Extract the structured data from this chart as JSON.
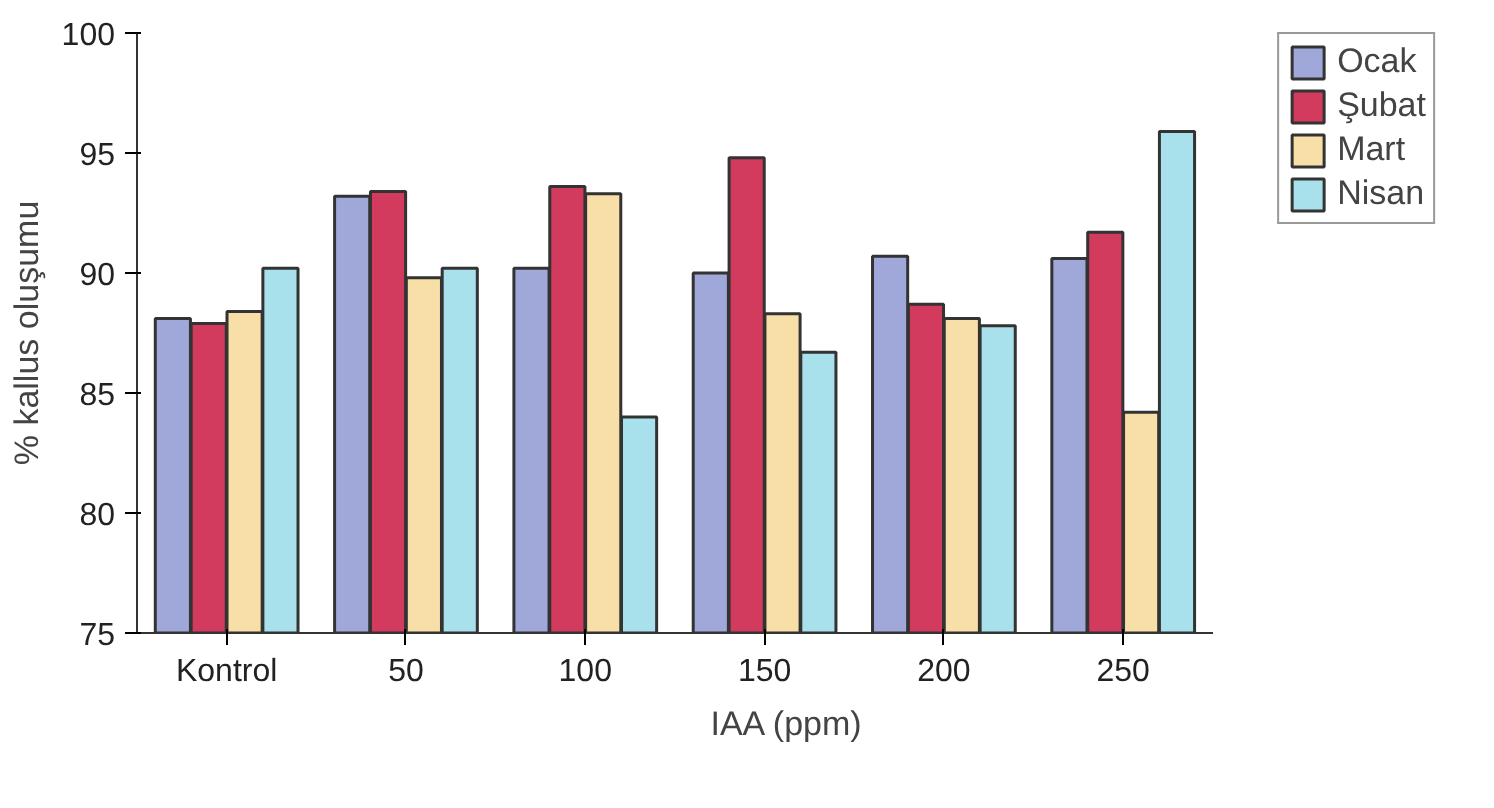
{
  "chart_data": {
    "type": "bar",
    "xlabel": "IAA (ppm)",
    "ylabel": "% kallus oluşumu",
    "categories": [
      "Kontrol",
      "50",
      "100",
      "150",
      "200",
      "250"
    ],
    "series": [
      {
        "name": "Ocak",
        "color": "#9fa8d8",
        "values": [
          88.1,
          93.2,
          90.2,
          90.0,
          90.7,
          90.6
        ]
      },
      {
        "name": "Şubat",
        "color": "#d23a5e",
        "values": [
          87.9,
          93.4,
          93.6,
          94.8,
          88.7,
          91.7
        ]
      },
      {
        "name": "Mart",
        "color": "#f8dfa8",
        "values": [
          88.4,
          89.8,
          93.3,
          88.3,
          88.1,
          84.2
        ]
      },
      {
        "name": "Nisan",
        "color": "#a8e0ec",
        "values": [
          90.2,
          90.2,
          84.0,
          86.7,
          87.8,
          95.9
        ]
      }
    ],
    "ylim": [
      75,
      100
    ],
    "yticks": [
      75,
      80,
      85,
      90,
      95,
      100
    ],
    "grid": false,
    "legend": "top right"
  }
}
